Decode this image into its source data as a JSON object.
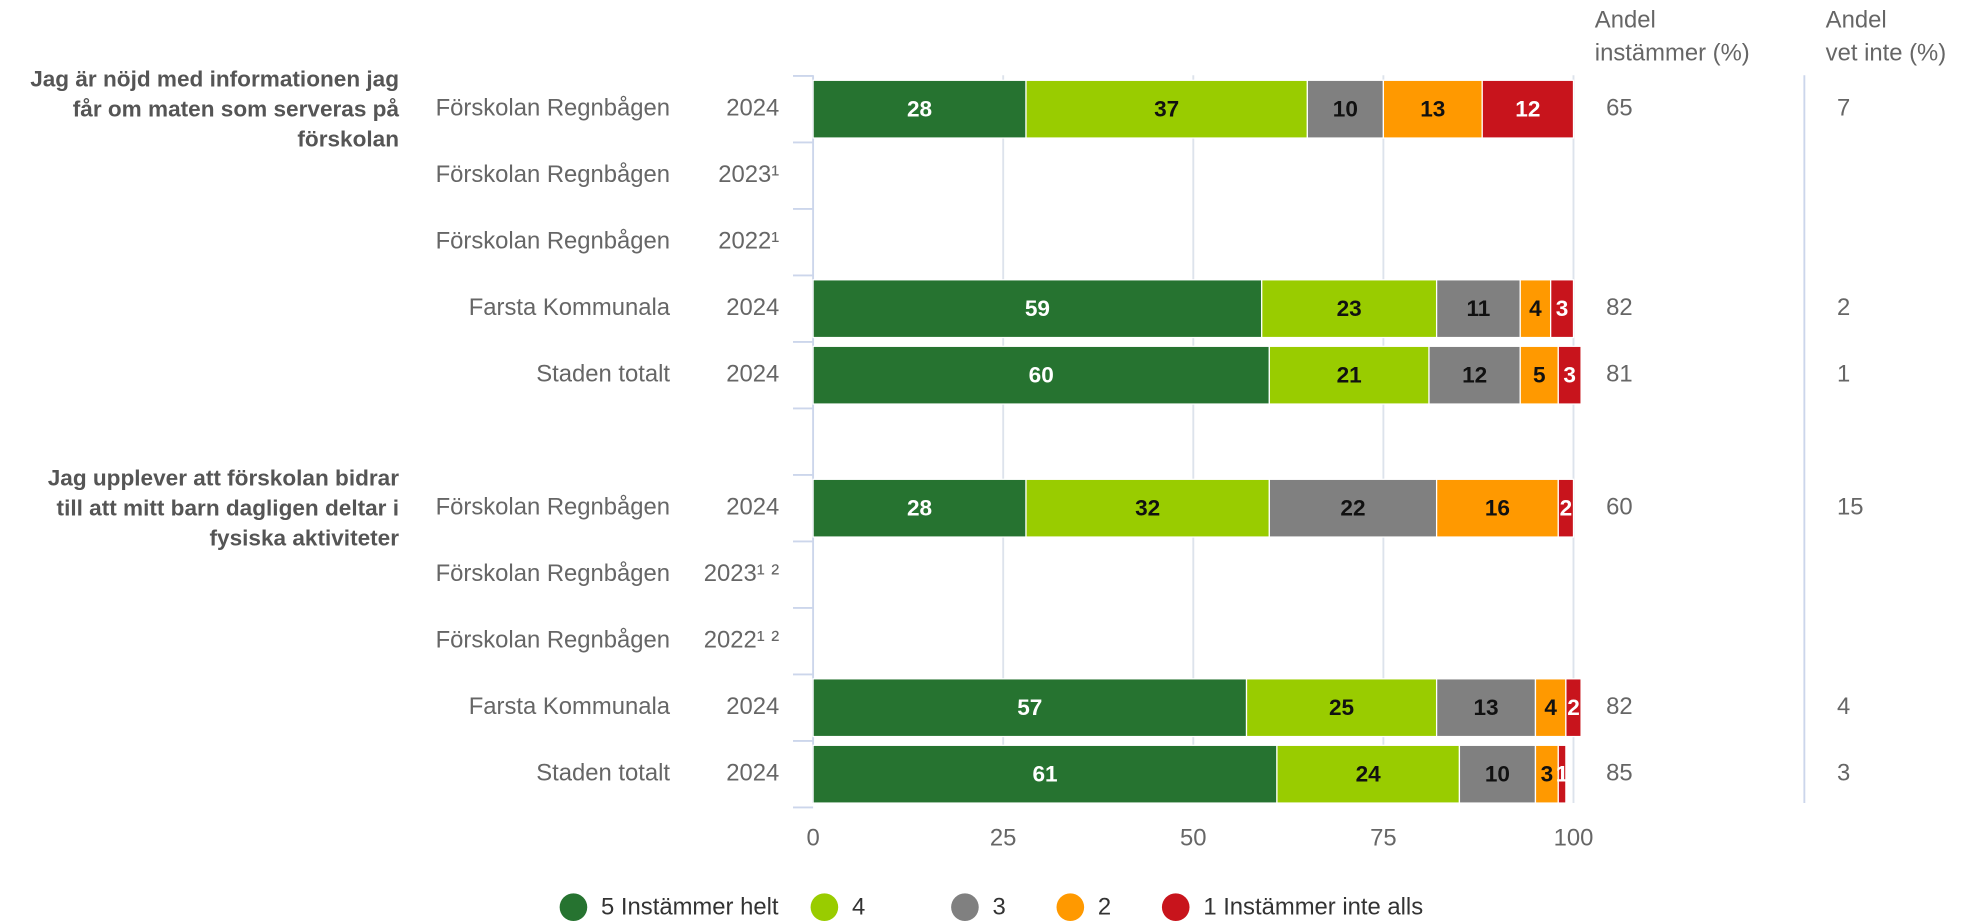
{
  "chart_data": {
    "type": "stacked-bar-horizontal",
    "questions": [
      [
        "Jag är nöjd med informationen jag",
        "får om maten som serveras på",
        "förskolan"
      ],
      [
        "Jag upplever att förskolan bidrar",
        "till att mitt barn dagligen deltar i",
        "fysiska aktiviteter"
      ]
    ],
    "categories": [
      "Förskolan Regnbågen",
      "Förskolan Regnbågen",
      "Förskolan Regnbågen",
      "Farsta Kommunala",
      "Staden totalt",
      "Förskolan Regnbågen",
      "Förskolan Regnbågen",
      "Förskolan Regnbågen",
      "Farsta Kommunala",
      "Staden totalt"
    ],
    "years": [
      "2024",
      "2023¹",
      "2022¹",
      "2024",
      "2024",
      "2024",
      "2023¹ ²",
      "2022¹ ²",
      "2024",
      "2024"
    ],
    "series": [
      {
        "name": "5 Instämmer helt",
        "color": "#267330",
        "label_color": "#ffffff",
        "values": [
          28,
          null,
          null,
          59,
          60,
          28,
          null,
          null,
          57,
          61
        ]
      },
      {
        "name": "4",
        "color": "#99cc00",
        "label_color": "#111111",
        "values": [
          37,
          null,
          null,
          23,
          21,
          32,
          null,
          null,
          25,
          24
        ]
      },
      {
        "name": "3",
        "color": "#808080",
        "label_color": "#111111",
        "values": [
          10,
          null,
          null,
          11,
          12,
          22,
          null,
          null,
          13,
          10
        ]
      },
      {
        "name": "2",
        "color": "#ff9900",
        "label_color": "#111111",
        "values": [
          13,
          null,
          null,
          4,
          5,
          16,
          null,
          null,
          4,
          3
        ]
      },
      {
        "name": "1 Instämmer inte alls",
        "color": "#c8141c",
        "label_color": "#ffffff",
        "values": [
          12,
          null,
          null,
          3,
          3,
          2,
          null,
          null,
          2,
          1
        ]
      }
    ],
    "columns": [
      {
        "header": [
          "Andel",
          "instämmer (%)"
        ],
        "values": [
          65,
          null,
          null,
          82,
          81,
          60,
          null,
          null,
          82,
          85
        ]
      },
      {
        "header": [
          "Andel",
          "vet inte (%)"
        ],
        "values": [
          7,
          null,
          null,
          2,
          1,
          15,
          null,
          null,
          4,
          3
        ]
      }
    ],
    "xlim": [
      0,
      100
    ],
    "xticks": [
      0,
      25,
      50,
      75,
      100
    ],
    "grid": true,
    "legend": "bottom"
  }
}
